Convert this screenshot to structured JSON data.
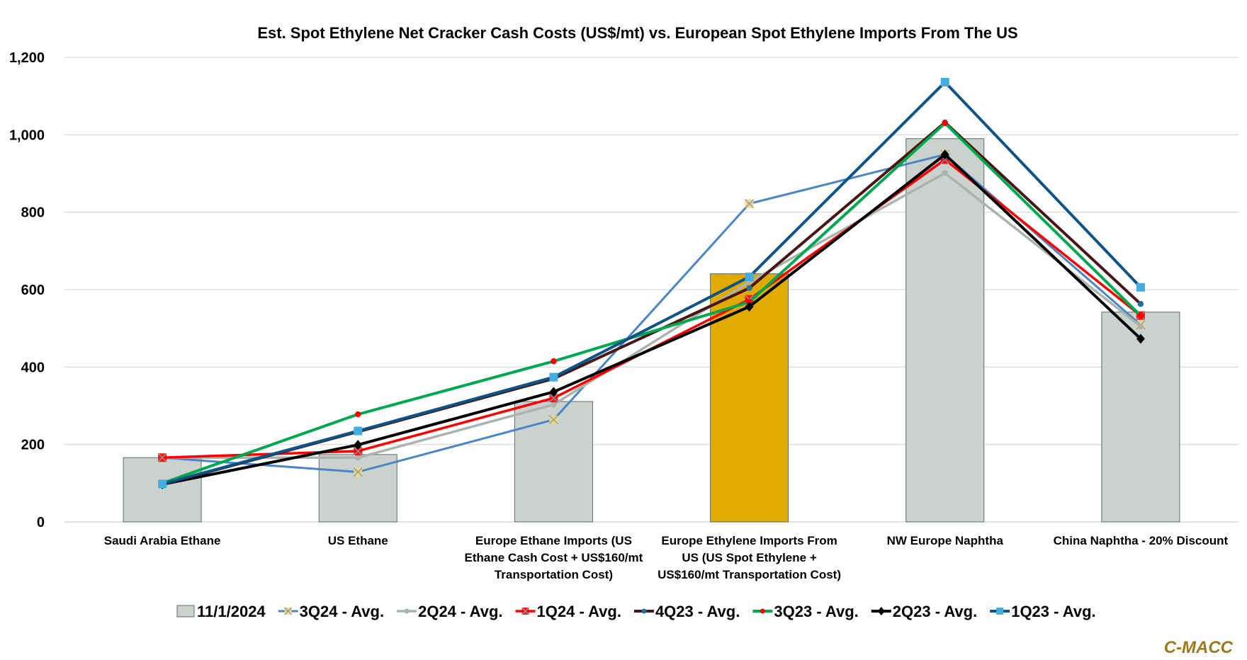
{
  "chart_data": {
    "type": "bar+line",
    "title": "Est. Spot Ethylene Net Cracker Cash Costs (US$/mt) vs. European Spot Ethylene Imports From The US",
    "xlabel": "",
    "ylabel": "",
    "ylim": [
      0,
      1200
    ],
    "yticks": [
      0,
      200,
      400,
      600,
      800,
      1000,
      1200
    ],
    "ytick_labels": [
      "0",
      "200",
      "400",
      "600",
      "800",
      "1,000",
      "1,200"
    ],
    "grid": true,
    "legend_position": "bottom",
    "categories": [
      [
        "Saudi Arabia Ethane"
      ],
      [
        "US Ethane"
      ],
      [
        "Europe Ethane Imports (US",
        "Ethane Cash Cost + US$160/mt",
        "Transportation Cost)"
      ],
      [
        "Europe Ethylene Imports From",
        "US (US Spot Ethylene +",
        "US$160/mt Transportation Cost)"
      ],
      [
        "NW Europe Naphtha"
      ],
      [
        "China Naphtha - 20% Discount"
      ]
    ],
    "bars": {
      "name": "11/1/2024",
      "values": [
        166,
        174,
        311,
        641,
        990,
        542
      ],
      "color": "#cbd1cd",
      "highlight_index": 3,
      "highlight_color": "#e0aa00"
    },
    "series": [
      {
        "name": "3Q24 - Avg.",
        "values": [
          166,
          129,
          264,
          822,
          949,
          509
        ],
        "color": "#4a86c5",
        "marker": "x",
        "marker_color": "#f5d67a",
        "width": 3
      },
      {
        "name": "2Q24 - Avg.",
        "values": [
          166,
          166,
          303,
          620,
          901,
          505
        ],
        "color": "#aab3ad",
        "marker": "dot",
        "marker_color": "#aab3ad",
        "width": 3.5
      },
      {
        "name": "1Q24 - Avg.",
        "values": [
          166,
          183,
          320,
          575,
          936,
          533
        ],
        "color": "#ff0000",
        "marker": "x",
        "marker_color": "#ff0000",
        "width": 3.5
      },
      {
        "name": "4Q23 - Avg.",
        "values": [
          97,
          233,
          370,
          604,
          1032,
          563
        ],
        "color": "#4a1515",
        "marker": "dot",
        "marker_color": "#1f6fa0",
        "width": 4
      },
      {
        "name": "3Q23 - Avg.",
        "values": [
          100,
          278,
          415,
          568,
          1030,
          533
        ],
        "color": "#00a84f",
        "marker": "dot",
        "marker_color": "#ff0000",
        "width": 4
      },
      {
        "name": "2Q23 - Avg.",
        "values": [
          97,
          199,
          336,
          556,
          949,
          473
        ],
        "color": "#000000",
        "marker": "diamond",
        "marker_color": "#000000",
        "width": 4
      },
      {
        "name": "1Q23 - Avg.",
        "values": [
          98,
          235,
          374,
          633,
          1136,
          606
        ],
        "color": "#0c5488",
        "marker": "square",
        "marker_color": "#45ace0",
        "width": 4
      }
    ]
  },
  "brand": "C-MACC"
}
